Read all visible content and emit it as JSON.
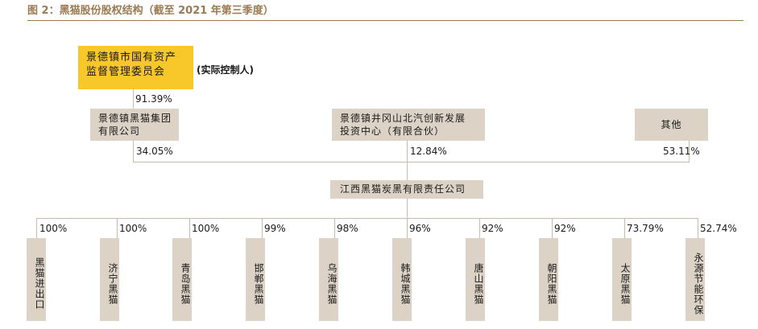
{
  "title": "图 2：黑猫股份股权结构（截至 2021 年第三季度）",
  "controller": {
    "name": "景德镇市国有资产监督管理委员会",
    "line1": "景德镇市国有资产",
    "line2": "监督管理委员会",
    "label": "(实际控制人)",
    "pct": "91.39%"
  },
  "shareholders": [
    {
      "line1": "景德镇黑猫集团",
      "line2": "有限公司",
      "pct": "34.05%"
    },
    {
      "line1": "景德镇井冈山北汽创新发展",
      "line2": "投资中心（有限合伙）",
      "pct": "12.84%"
    },
    {
      "line1": "其他",
      "line2": "",
      "pct": "53.11%"
    }
  ],
  "company": {
    "name": "江西黑猫炭黑有限责任公司"
  },
  "subsidiaries": [
    {
      "name": "黑猫进出口",
      "pct": "100%"
    },
    {
      "name": "济宁黑猫",
      "pct": "100%"
    },
    {
      "name": "青岛黑猫",
      "pct": "100%"
    },
    {
      "name": "邯郸黑猫",
      "pct": "99%"
    },
    {
      "name": "乌海黑猫",
      "pct": "98%"
    },
    {
      "name": "韩城黑猫",
      "pct": "96%"
    },
    {
      "name": "唐山黑猫",
      "pct": "92%"
    },
    {
      "name": "朝阳黑猫",
      "pct": "92%"
    },
    {
      "name": "太原黑猫",
      "pct": "73.79%"
    },
    {
      "name": "永源节能环保",
      "pct": "52.74%"
    }
  ]
}
